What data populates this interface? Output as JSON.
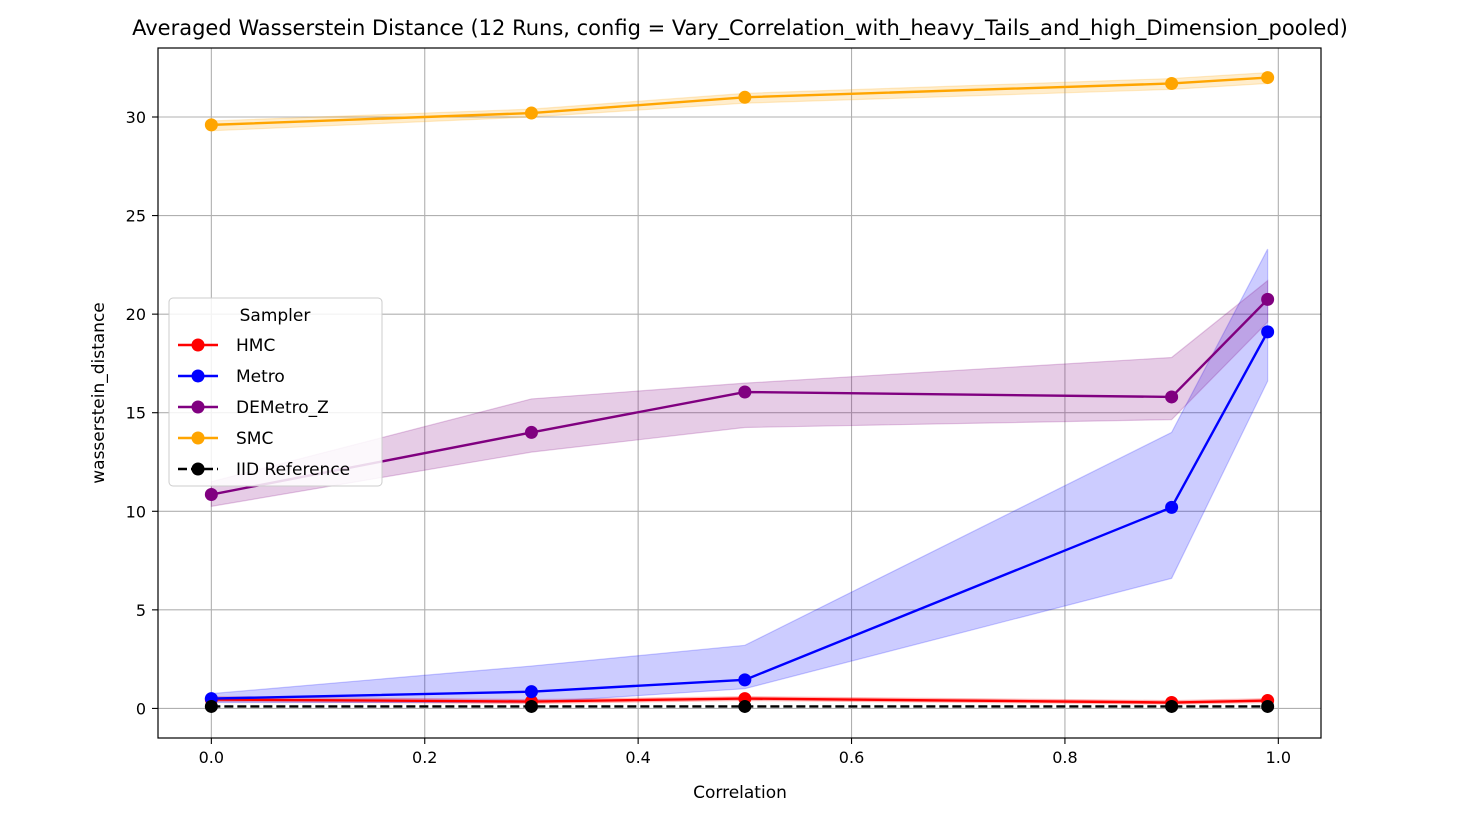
{
  "chart_data": {
    "type": "line",
    "title": "Averaged Wasserstein Distance (12 Runs, config = Vary_Correlation_with_heavy_Tails_and_high_Dimension_pooled)",
    "xlabel": "Correlation",
    "ylabel": "wasserstein_distance",
    "xlim": [
      -0.05,
      1.04
    ],
    "ylim": [
      -1.5,
      33.5
    ],
    "xticks": [
      0.0,
      0.2,
      0.4,
      0.6,
      0.8,
      1.0
    ],
    "xtick_labels": [
      "0.0",
      "0.2",
      "0.4",
      "0.6",
      "0.8",
      "1.0"
    ],
    "yticks": [
      0,
      5,
      10,
      15,
      20,
      25,
      30
    ],
    "ytick_labels": [
      "0",
      "5",
      "10",
      "15",
      "20",
      "25",
      "30"
    ],
    "grid": true,
    "legend": {
      "title": "Sampler",
      "placement": "center-left"
    },
    "x": [
      0.0,
      0.3,
      0.5,
      0.9,
      0.99
    ],
    "series": [
      {
        "name": "HMC",
        "color": "#ff0000",
        "style": "solid",
        "values": [
          0.45,
          0.35,
          0.5,
          0.3,
          0.4
        ],
        "band_low": [
          0.35,
          0.25,
          0.4,
          0.22,
          0.3
        ],
        "band_high": [
          0.6,
          0.45,
          0.6,
          0.4,
          0.5
        ]
      },
      {
        "name": "Metro",
        "color": "#0000ff",
        "style": "solid",
        "values": [
          0.5,
          0.85,
          1.45,
          10.2,
          19.1
        ],
        "band_low": [
          0.3,
          0.3,
          1.0,
          6.6,
          16.6
        ],
        "band_high": [
          0.75,
          2.15,
          3.2,
          14.0,
          23.3
        ]
      },
      {
        "name": "DEMetro_Z",
        "color": "#800080",
        "style": "solid",
        "values": [
          10.85,
          14.0,
          16.05,
          15.8,
          20.75
        ],
        "band_low": [
          10.25,
          13.0,
          14.25,
          14.65,
          19.6
        ],
        "band_high": [
          11.5,
          15.7,
          16.5,
          17.8,
          21.7
        ]
      },
      {
        "name": "SMC",
        "color": "#ffa500",
        "style": "solid",
        "values": [
          29.6,
          30.2,
          31.0,
          31.7,
          32.0
        ],
        "band_low": [
          29.3,
          30.0,
          30.7,
          31.4,
          31.7
        ],
        "band_high": [
          29.8,
          30.4,
          31.2,
          31.95,
          32.25
        ]
      },
      {
        "name": "IID Reference",
        "color": "#000000",
        "style": "dashed",
        "values": [
          0.1,
          0.1,
          0.1,
          0.1,
          0.1
        ]
      }
    ]
  }
}
